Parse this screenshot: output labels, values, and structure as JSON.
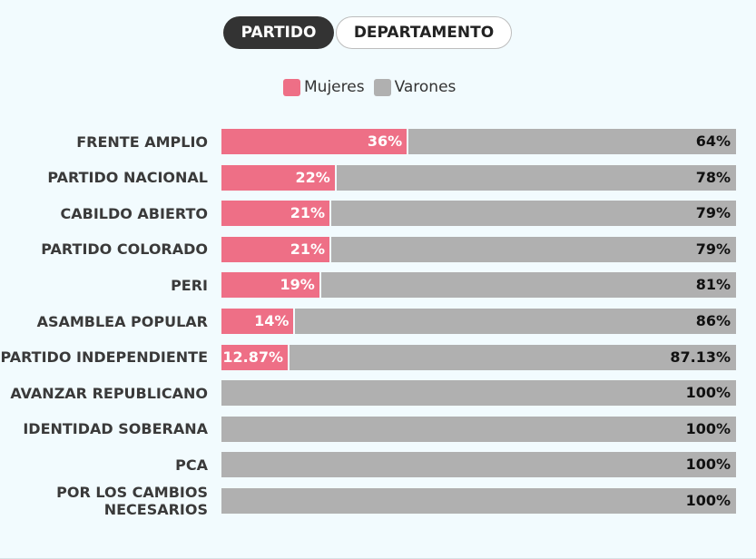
{
  "tabs": [
    {
      "label": "PARTIDO",
      "active": true
    },
    {
      "label": "DEPARTAMENTO",
      "active": false
    }
  ],
  "legend": [
    {
      "label": "Mujeres",
      "color": "#ee6f86"
    },
    {
      "label": "Varones",
      "color": "#b0b0b0"
    }
  ],
  "chart_data": {
    "type": "bar",
    "orientation": "horizontal",
    "stacked": true,
    "percent_stacked": true,
    "categories": [
      "FRENTE AMPLIO",
      "PARTIDO NACIONAL",
      "CABILDO ABIERTO",
      "PARTIDO COLORADO",
      "PERI",
      "ASAMBLEA POPULAR",
      "PARTIDO INDEPENDIENTE",
      "AVANZAR REPUBLICANO",
      "IDENTIDAD SOBERANA",
      "PCA",
      "POR LOS CAMBIOS NECESARIOS"
    ],
    "series": [
      {
        "name": "Mujeres",
        "color": "#ee6f86",
        "values": [
          36,
          22,
          21,
          21,
          19,
          14,
          12.87,
          0,
          0,
          0,
          0
        ],
        "labels": [
          "36%",
          "22%",
          "21%",
          "21%",
          "19%",
          "14%",
          "12.87%",
          "",
          "",
          "",
          ""
        ]
      },
      {
        "name": "Varones",
        "color": "#b0b0b0",
        "values": [
          64,
          78,
          79,
          79,
          81,
          86,
          87.13,
          100,
          100,
          100,
          100
        ],
        "labels": [
          "64%",
          "78%",
          "79%",
          "79%",
          "81%",
          "86%",
          "87.13%",
          "100%",
          "100%",
          "100%",
          "100%"
        ]
      }
    ],
    "xlim": [
      0,
      100
    ],
    "legend_position": "top-center"
  }
}
